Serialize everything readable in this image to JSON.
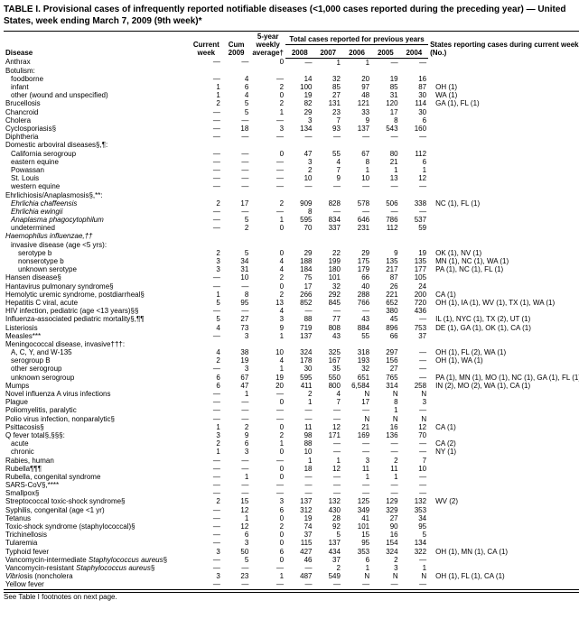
{
  "title": "TABLE I. Provisional cases of infrequently reported notifiable diseases (<1,000 cases reported during the preceding year) — United States, week ending March 7, 2009 (9th week)*",
  "headers": {
    "disease": "Disease",
    "current_week": "Current week",
    "cum_2009": "Cum 2009",
    "five_year": "5-year weekly average†",
    "total_cases": "Total cases reported for previous years",
    "y2008": "2008",
    "y2007": "2007",
    "y2006": "2006",
    "y2005": "2005",
    "y2004": "2004",
    "states": "States reporting cases during current week (No.)"
  },
  "footnote": "See Table I footnotes on next page.",
  "rows": [
    {
      "d": "Anthrax",
      "i": 0,
      "c": [
        "—",
        "—",
        "0",
        "—",
        "1",
        "1",
        "—",
        "—",
        ""
      ]
    },
    {
      "d": "Botulism:",
      "i": 0,
      "c": [
        "",
        "",
        "",
        "",
        "",
        "",
        "",
        "",
        ""
      ]
    },
    {
      "d": "foodborne",
      "i": 1,
      "c": [
        "—",
        "4",
        "—",
        "14",
        "32",
        "20",
        "19",
        "16",
        ""
      ]
    },
    {
      "d": "infant",
      "i": 1,
      "c": [
        "1",
        "6",
        "2",
        "100",
        "85",
        "97",
        "85",
        "87",
        "OH (1)"
      ]
    },
    {
      "d": "other (wound and unspecified)",
      "i": 1,
      "c": [
        "1",
        "4",
        "0",
        "19",
        "27",
        "48",
        "31",
        "30",
        "WA (1)"
      ]
    },
    {
      "d": "Brucellosis",
      "i": 0,
      "c": [
        "2",
        "5",
        "2",
        "82",
        "131",
        "121",
        "120",
        "114",
        "GA (1), FL (1)"
      ]
    },
    {
      "d": "Chancroid",
      "i": 0,
      "c": [
        "—",
        "5",
        "1",
        "29",
        "23",
        "33",
        "17",
        "30",
        ""
      ]
    },
    {
      "d": "Cholera",
      "i": 0,
      "c": [
        "—",
        "—",
        "—",
        "3",
        "7",
        "9",
        "8",
        "6",
        ""
      ]
    },
    {
      "d": "Cyclosporiasis§",
      "i": 0,
      "c": [
        "—",
        "18",
        "3",
        "134",
        "93",
        "137",
        "543",
        "160",
        ""
      ]
    },
    {
      "d": "Diphtheria",
      "i": 0,
      "c": [
        "—",
        "—",
        "—",
        "—",
        "—",
        "—",
        "—",
        "—",
        ""
      ]
    },
    {
      "d": "Domestic arboviral diseases§,¶:",
      "i": 0,
      "c": [
        "",
        "",
        "",
        "",
        "",
        "",
        "",
        "",
        ""
      ]
    },
    {
      "d": "California serogroup",
      "i": 1,
      "c": [
        "—",
        "—",
        "0",
        "47",
        "55",
        "67",
        "80",
        "112",
        ""
      ]
    },
    {
      "d": "eastern equine",
      "i": 1,
      "c": [
        "—",
        "—",
        "—",
        "3",
        "4",
        "8",
        "21",
        "6",
        ""
      ]
    },
    {
      "d": "Powassan",
      "i": 1,
      "c": [
        "—",
        "—",
        "—",
        "2",
        "7",
        "1",
        "1",
        "1",
        ""
      ]
    },
    {
      "d": "St. Louis",
      "i": 1,
      "c": [
        "—",
        "—",
        "—",
        "10",
        "9",
        "10",
        "13",
        "12",
        ""
      ]
    },
    {
      "d": "western equine",
      "i": 1,
      "c": [
        "—",
        "—",
        "—",
        "—",
        "—",
        "—",
        "—",
        "—",
        ""
      ]
    },
    {
      "d": "Ehrlichiosis/Anaplasmosis§,**:",
      "i": 0,
      "c": [
        "",
        "",
        "",
        "",
        "",
        "",
        "",
        "",
        ""
      ]
    },
    {
      "d": "Ehrlichia chaffeensis",
      "i": 1,
      "it": true,
      "c": [
        "2",
        "17",
        "2",
        "909",
        "828",
        "578",
        "506",
        "338",
        "NC (1), FL (1)"
      ]
    },
    {
      "d": "Ehrlichia ewingii",
      "i": 1,
      "it": true,
      "c": [
        "—",
        "—",
        "—",
        "8",
        "—",
        "—",
        "—",
        "—",
        ""
      ]
    },
    {
      "d": "Anaplasma phagocytophilum",
      "i": 1,
      "it": true,
      "c": [
        "—",
        "5",
        "1",
        "595",
        "834",
        "646",
        "786",
        "537",
        ""
      ]
    },
    {
      "d": "undetermined",
      "i": 1,
      "c": [
        "—",
        "2",
        "0",
        "70",
        "337",
        "231",
        "112",
        "59",
        ""
      ]
    },
    {
      "d": "Haemophilus influenzae,††",
      "i": 0,
      "it": true,
      "c": [
        "",
        "",
        "",
        "",
        "",
        "",
        "",
        "",
        ""
      ]
    },
    {
      "d": "invasive disease (age <5 yrs):",
      "i": 1,
      "c": [
        "",
        "",
        "",
        "",
        "",
        "",
        "",
        "",
        ""
      ]
    },
    {
      "d": "serotype b",
      "i": 2,
      "c": [
        "2",
        "5",
        "0",
        "29",
        "22",
        "29",
        "9",
        "19",
        "OK (1), NV (1)"
      ]
    },
    {
      "d": "nonserotype b",
      "i": 2,
      "c": [
        "3",
        "34",
        "4",
        "188",
        "199",
        "175",
        "135",
        "135",
        "MN (1), NC (1), WA (1)"
      ]
    },
    {
      "d": "unknown serotype",
      "i": 2,
      "c": [
        "3",
        "31",
        "4",
        "184",
        "180",
        "179",
        "217",
        "177",
        "PA (1), NC (1), FL (1)"
      ]
    },
    {
      "d": "Hansen disease§",
      "i": 0,
      "c": [
        "—",
        "10",
        "2",
        "75",
        "101",
        "66",
        "87",
        "105",
        ""
      ]
    },
    {
      "d": "Hantavirus pulmonary syndrome§",
      "i": 0,
      "c": [
        "—",
        "—",
        "0",
        "17",
        "32",
        "40",
        "26",
        "24",
        ""
      ]
    },
    {
      "d": "Hemolytic uremic syndrome, postdiarrheal§",
      "i": 0,
      "c": [
        "1",
        "8",
        "2",
        "266",
        "292",
        "288",
        "221",
        "200",
        "CA (1)"
      ]
    },
    {
      "d": "Hepatitis C viral, acute",
      "i": 0,
      "c": [
        "5",
        "95",
        "13",
        "852",
        "845",
        "766",
        "652",
        "720",
        "OH (1), IA (1), WV (1), TX (1), WA (1)"
      ]
    },
    {
      "d": "HIV infection, pediatric (age <13 years)§§",
      "i": 0,
      "c": [
        "—",
        "—",
        "4",
        "—",
        "—",
        "—",
        "380",
        "436",
        ""
      ]
    },
    {
      "d": "Influenza-associated pediatric mortality§,¶¶",
      "i": 0,
      "c": [
        "5",
        "27",
        "3",
        "88",
        "77",
        "43",
        "45",
        "—",
        "IL (1), NYC (1), TX (2), UT (1)"
      ]
    },
    {
      "d": "Listeriosis",
      "i": 0,
      "c": [
        "4",
        "73",
        "9",
        "719",
        "808",
        "884",
        "896",
        "753",
        "DE (1), GA (1), OK (1), CA (1)"
      ]
    },
    {
      "d": "Measles***",
      "i": 0,
      "c": [
        "—",
        "3",
        "1",
        "137",
        "43",
        "55",
        "66",
        "37",
        ""
      ]
    },
    {
      "d": "Meningococcal disease, invasive†††:",
      "i": 0,
      "c": [
        "",
        "",
        "",
        "",
        "",
        "",
        "",
        "",
        ""
      ]
    },
    {
      "d": "A, C, Y, and W-135",
      "i": 1,
      "c": [
        "4",
        "38",
        "10",
        "324",
        "325",
        "318",
        "297",
        "—",
        "OH (1), FL (2), WA (1)"
      ]
    },
    {
      "d": "serogroup B",
      "i": 1,
      "c": [
        "2",
        "19",
        "4",
        "178",
        "167",
        "193",
        "156",
        "—",
        "OH (1), WA (1)"
      ]
    },
    {
      "d": "other serogroup",
      "i": 1,
      "c": [
        "—",
        "3",
        "1",
        "30",
        "35",
        "32",
        "27",
        "—",
        ""
      ]
    },
    {
      "d": "unknown serogroup",
      "i": 1,
      "c": [
        "6",
        "67",
        "19",
        "595",
        "550",
        "651",
        "765",
        "—",
        "PA (1), MN (1), MO (1), NC (1), GA (1), FL (1)"
      ]
    },
    {
      "d": "Mumps",
      "i": 0,
      "c": [
        "6",
        "47",
        "20",
        "411",
        "800",
        "6,584",
        "314",
        "258",
        "IN (2), MO (2), WA (1), CA (1)"
      ]
    },
    {
      "d": "Novel influenza A virus infections",
      "i": 0,
      "c": [
        "—",
        "1",
        "—",
        "2",
        "4",
        "N",
        "N",
        "N",
        ""
      ]
    },
    {
      "d": "Plague",
      "i": 0,
      "c": [
        "—",
        "—",
        "0",
        "1",
        "7",
        "17",
        "8",
        "3",
        ""
      ]
    },
    {
      "d": "Poliomyelitis, paralytic",
      "i": 0,
      "c": [
        "—",
        "—",
        "—",
        "—",
        "—",
        "—",
        "1",
        "—",
        ""
      ]
    },
    {
      "d": "Polio virus infection, nonparalytic§",
      "i": 0,
      "c": [
        "—",
        "—",
        "—",
        "—",
        "—",
        "N",
        "N",
        "N",
        ""
      ]
    },
    {
      "d": "Psittacosis§",
      "i": 0,
      "c": [
        "1",
        "2",
        "0",
        "11",
        "12",
        "21",
        "16",
        "12",
        "CA (1)"
      ]
    },
    {
      "d": "Q fever total§,§§§:",
      "i": 0,
      "c": [
        "3",
        "9",
        "2",
        "98",
        "171",
        "169",
        "136",
        "70",
        ""
      ]
    },
    {
      "d": "acute",
      "i": 1,
      "c": [
        "2",
        "6",
        "1",
        "88",
        "—",
        "—",
        "—",
        "—",
        "CA (2)"
      ]
    },
    {
      "d": "chronic",
      "i": 1,
      "c": [
        "1",
        "3",
        "0",
        "10",
        "—",
        "—",
        "—",
        "—",
        "NY (1)"
      ]
    },
    {
      "d": "Rabies, human",
      "i": 0,
      "c": [
        "—",
        "—",
        "—",
        "1",
        "1",
        "3",
        "2",
        "7",
        ""
      ]
    },
    {
      "d": "Rubella¶¶¶",
      "i": 0,
      "c": [
        "—",
        "—",
        "0",
        "18",
        "12",
        "11",
        "11",
        "10",
        ""
      ]
    },
    {
      "d": "Rubella, congenital syndrome",
      "i": 0,
      "c": [
        "—",
        "1",
        "0",
        "—",
        "—",
        "1",
        "1",
        "—",
        ""
      ]
    },
    {
      "d": "SARS-CoV§,****",
      "i": 0,
      "c": [
        "—",
        "—",
        "—",
        "—",
        "—",
        "—",
        "—",
        "—",
        ""
      ]
    },
    {
      "d": "Smallpox§",
      "i": 0,
      "c": [
        "—",
        "—",
        "—",
        "—",
        "—",
        "—",
        "—",
        "—",
        ""
      ]
    },
    {
      "d": "Streptococcal toxic-shock syndrome§",
      "i": 0,
      "c": [
        "2",
        "15",
        "3",
        "137",
        "132",
        "125",
        "129",
        "132",
        "WV (2)"
      ]
    },
    {
      "d": "Syphilis, congenital (age <1 yr)",
      "i": 0,
      "c": [
        "—",
        "12",
        "6",
        "312",
        "430",
        "349",
        "329",
        "353",
        ""
      ]
    },
    {
      "d": "Tetanus",
      "i": 0,
      "c": [
        "—",
        "1",
        "0",
        "19",
        "28",
        "41",
        "27",
        "34",
        ""
      ]
    },
    {
      "d": "Toxic-shock syndrome (staphylococcal)§",
      "i": 0,
      "c": [
        "—",
        "12",
        "2",
        "74",
        "92",
        "101",
        "90",
        "95",
        ""
      ]
    },
    {
      "d": "Trichinellosis",
      "i": 0,
      "c": [
        "—",
        "6",
        "0",
        "37",
        "5",
        "15",
        "16",
        "5",
        ""
      ]
    },
    {
      "d": "Tularemia",
      "i": 0,
      "c": [
        "—",
        "3",
        "0",
        "115",
        "137",
        "95",
        "154",
        "134",
        ""
      ]
    },
    {
      "d": "Typhoid fever",
      "i": 0,
      "c": [
        "3",
        "50",
        "6",
        "427",
        "434",
        "353",
        "324",
        "322",
        "OH (1), MN (1), CA (1)"
      ]
    },
    {
      "d": "Vancomycin-intermediate Staphylococcus aureus§",
      "i": 0,
      "ithalf": true,
      "c": [
        "—",
        "5",
        "0",
        "46",
        "37",
        "6",
        "2",
        "—",
        ""
      ]
    },
    {
      "d": "Vancomycin-resistant Staphylococcus aureus§",
      "i": 0,
      "ithalf": true,
      "c": [
        "—",
        "—",
        "—",
        "—",
        "2",
        "1",
        "3",
        "1",
        ""
      ]
    },
    {
      "d": "Vibriosis (noncholera Vibrio species infections)§",
      "i": 0,
      "ithalf2": true,
      "c": [
        "3",
        "23",
        "1",
        "487",
        "549",
        "N",
        "N",
        "N",
        "OH (1), FL (1), CA (1)"
      ]
    },
    {
      "d": "Yellow fever",
      "i": 0,
      "c": [
        "—",
        "—",
        "—",
        "—",
        "—",
        "—",
        "—",
        "—",
        ""
      ]
    }
  ],
  "col_widths": {
    "disease": "200px",
    "num": "32px",
    "states": "auto"
  }
}
